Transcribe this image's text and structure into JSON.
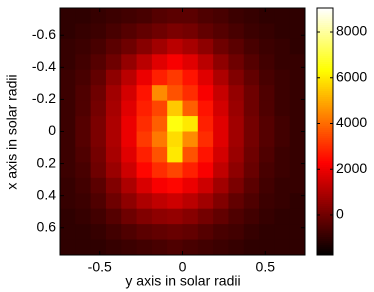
{
  "chart_data": {
    "type": "heatmap",
    "x_label": "y axis in solar radii",
    "y_label": "x axis in solar radii",
    "xlim": [
      -0.74,
      0.74
    ],
    "xticks": [
      -0.5,
      0,
      0.5
    ],
    "ylim": [
      -0.77,
      0.77
    ],
    "yticks": [
      -0.6,
      -0.4,
      -0.2,
      0,
      0.2,
      0.4,
      0.6
    ],
    "y_reversed": true,
    "colormap": "hot",
    "clim": [
      -1750,
      9050
    ],
    "cticks": [
      0,
      2000,
      4000,
      6000,
      8000
    ],
    "values": [
      [
        -1000,
        -1000,
        -900,
        -800,
        -700,
        -600,
        -400,
        -300,
        -300,
        -500,
        -600,
        -800,
        -900,
        -1000,
        -1000,
        -1000
      ],
      [
        -1000,
        -900,
        -800,
        -600,
        -400,
        -200,
        0,
        200,
        100,
        -200,
        -400,
        -600,
        -800,
        -900,
        -1000,
        -1000
      ],
      [
        -900,
        -800,
        -600,
        -300,
        0,
        400,
        800,
        1200,
        900,
        500,
        0,
        -300,
        -600,
        -800,
        -900,
        -1000
      ],
      [
        -900,
        -700,
        -400,
        0,
        600,
        1200,
        1800,
        2200,
        1800,
        1200,
        500,
        0,
        -400,
        -700,
        -900,
        -900
      ],
      [
        -800,
        -600,
        -200,
        500,
        1200,
        2000,
        2800,
        3200,
        2600,
        1800,
        1000,
        300,
        -200,
        -600,
        -800,
        -900
      ],
      [
        -800,
        -500,
        0,
        800,
        1600,
        2600,
        4500,
        3600,
        3000,
        2200,
        1400,
        600,
        0,
        -500,
        -800,
        -900
      ],
      [
        -800,
        -500,
        100,
        900,
        1800,
        2800,
        3400,
        5500,
        3800,
        2600,
        1600,
        700,
        0,
        -500,
        -800,
        -900
      ],
      [
        -800,
        -400,
        200,
        1000,
        2000,
        3000,
        3800,
        6500,
        6000,
        2800,
        1800,
        800,
        100,
        -400,
        -700,
        -900
      ],
      [
        -800,
        -400,
        200,
        1000,
        2000,
        3200,
        4200,
        5800,
        4500,
        3000,
        1800,
        800,
        100,
        -400,
        -700,
        -900
      ],
      [
        -800,
        -500,
        100,
        900,
        1800,
        2800,
        3600,
        6000,
        3600,
        2600,
        1600,
        700,
        0,
        -500,
        -800,
        -900
      ],
      [
        -800,
        -600,
        0,
        700,
        1500,
        2400,
        3000,
        3400,
        2800,
        2200,
        1300,
        500,
        -100,
        -600,
        -800,
        -900
      ],
      [
        -900,
        -700,
        -300,
        300,
        1000,
        1700,
        2200,
        2400,
        2000,
        1500,
        800,
        200,
        -300,
        -700,
        -900,
        -900
      ],
      [
        -900,
        -800,
        -500,
        0,
        500,
        1000,
        1300,
        1500,
        1200,
        800,
        300,
        -200,
        -500,
        -800,
        -900,
        -1000
      ],
      [
        -1000,
        -900,
        -700,
        -400,
        0,
        300,
        500,
        600,
        400,
        100,
        -200,
        -500,
        -700,
        -900,
        -1000,
        -1000
      ],
      [
        -1000,
        -1000,
        -900,
        -700,
        -500,
        -300,
        -200,
        -100,
        -200,
        -400,
        -600,
        -700,
        -900,
        -1000,
        -1000,
        -1000
      ],
      [
        -1000,
        -1000,
        -1000,
        -900,
        -800,
        -700,
        -600,
        -500,
        -600,
        -700,
        -800,
        -900,
        -1000,
        -1000,
        -1000,
        -1000
      ]
    ]
  }
}
